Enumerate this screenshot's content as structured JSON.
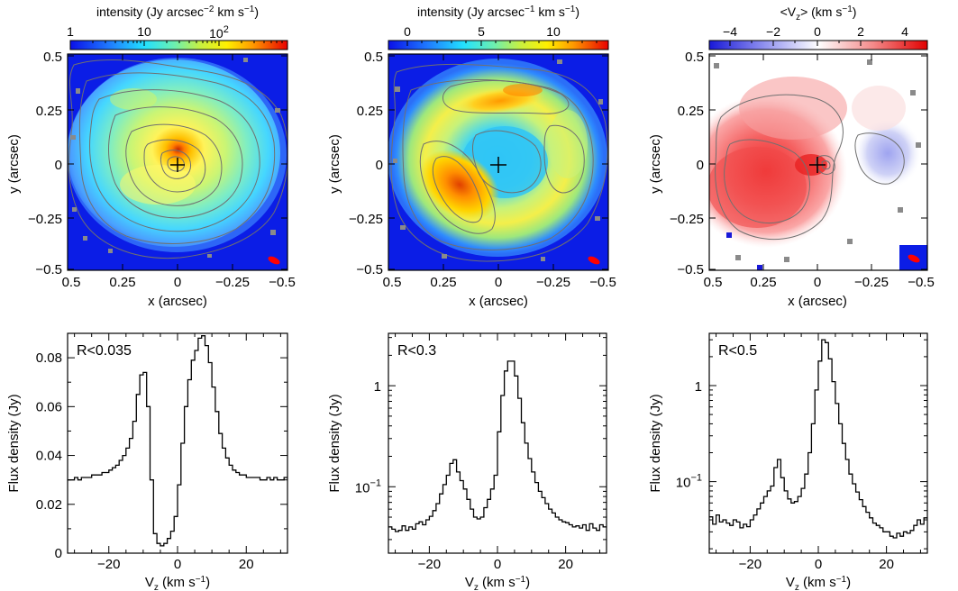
{
  "colors": {
    "map_background": "#0b1de6",
    "cross": "#000000",
    "beam": "#ff0000",
    "contour": "#707070",
    "line": "#000000"
  },
  "chart_data": [
    {
      "type": "heatmap",
      "panel": "top-left",
      "colorbar": {
        "label_pre": "intensity (Jy arcsec",
        "label_sup": "−2",
        "label_post": " km s",
        "label_sup2": "−1",
        "label_end": ")",
        "scale": "log",
        "ticks": [
          "1",
          "10",
          "10"
        ],
        "tick_sup": "2",
        "range": [
          1,
          600
        ]
      },
      "xlabel": "x (arcsec)",
      "ylabel": "y (arcsec)",
      "xlim": [
        0.5,
        -0.5
      ],
      "ylim": [
        -0.5,
        0.5
      ],
      "xticks": [
        "0.5",
        "0.25",
        "0",
        "−0.25",
        "−0.5"
      ],
      "yticks": [
        "0.5",
        "0.25",
        "0",
        "−0.25",
        "−0.5"
      ],
      "peak_position": [
        0.0,
        0.0
      ]
    },
    {
      "type": "heatmap",
      "panel": "top-middle",
      "colorbar": {
        "label_pre": "intensity (Jy arcsec",
        "label_sup": "−1",
        "label_post": " km s",
        "label_sup2": "−1",
        "label_end": ")",
        "scale": "linear",
        "ticks": [
          "0",
          "5",
          "10"
        ],
        "range": [
          -2,
          13
        ]
      },
      "xlabel": "x (arcsec)",
      "ylabel": "y (arcsec)",
      "xlim": [
        0.5,
        -0.5
      ],
      "ylim": [
        -0.5,
        0.5
      ],
      "xticks": [
        "0.5",
        "0.25",
        "0",
        "−0.25",
        "−0.5"
      ],
      "yticks": [
        "0.5",
        "0.25",
        "0",
        "−0.25",
        "−0.5"
      ]
    },
    {
      "type": "heatmap",
      "panel": "top-right",
      "colorbar": {
        "label_pre": "<V",
        "label_sub": "z",
        "label_post": "> (km s",
        "label_sup2": "−1",
        "label_end": ")",
        "scale": "linear",
        "ticks": [
          "−4",
          "−2",
          "0",
          "2",
          "4"
        ],
        "range": [
          -5,
          5
        ]
      },
      "xlabel": "x (arcsec)",
      "ylabel": "y (arcsec)",
      "xlim": [
        0.5,
        -0.5
      ],
      "ylim": [
        -0.5,
        0.5
      ],
      "xticks": [
        "0.5",
        "0.25",
        "0",
        "−0.25",
        "−0.5"
      ],
      "yticks": [
        "0.5",
        "0.25",
        "0",
        "−0.25",
        "−0.5"
      ]
    },
    {
      "type": "line",
      "panel": "bottom-left",
      "label": "R<0.035",
      "xlabel_main": "V",
      "xlabel_sub": "z",
      "xlabel_tail": " (km s",
      "xlabel_sup": "−1",
      "xlabel_end": ")",
      "ylabel": "Flux density (Jy)",
      "xlim": [
        -32,
        32
      ],
      "ylim": [
        0,
        0.09
      ],
      "yscale": "linear",
      "xticks": [
        -20,
        0,
        20
      ],
      "yticks": [
        0,
        0.02,
        0.04,
        0.06,
        0.08
      ],
      "ytick_labels": [
        "0",
        "0.02",
        "0.04",
        "0.06",
        "0.08"
      ],
      "step_width": 1,
      "x": [
        -32,
        -31,
        -30,
        -29,
        -28,
        -27,
        -26,
        -25,
        -24,
        -23,
        -22,
        -21,
        -20,
        -19,
        -18,
        -17,
        -16,
        -15,
        -14,
        -13,
        -12,
        -11,
        -10,
        -9,
        -8,
        -7,
        -6,
        -5,
        -4,
        -3,
        -2,
        -1,
        0,
        1,
        2,
        3,
        4,
        5,
        6,
        7,
        8,
        9,
        10,
        11,
        12,
        13,
        14,
        15,
        16,
        17,
        18,
        19,
        20,
        21,
        22,
        23,
        24,
        25,
        26,
        27,
        28,
        29,
        30,
        31
      ],
      "y": [
        0.03,
        0.03,
        0.031,
        0.03,
        0.031,
        0.031,
        0.031,
        0.032,
        0.032,
        0.032,
        0.033,
        0.033,
        0.034,
        0.035,
        0.036,
        0.038,
        0.04,
        0.043,
        0.047,
        0.054,
        0.065,
        0.073,
        0.074,
        0.06,
        0.03,
        0.008,
        0.004,
        0.003,
        0.004,
        0.006,
        0.009,
        0.015,
        0.028,
        0.045,
        0.06,
        0.071,
        0.079,
        0.083,
        0.088,
        0.089,
        0.085,
        0.078,
        0.068,
        0.058,
        0.049,
        0.043,
        0.039,
        0.036,
        0.034,
        0.033,
        0.032,
        0.032,
        0.031,
        0.031,
        0.031,
        0.031,
        0.03,
        0.03,
        0.031,
        0.03,
        0.031,
        0.03,
        0.03,
        0.031
      ]
    },
    {
      "type": "line",
      "panel": "bottom-middle",
      "label": "R<0.3",
      "xlabel_main": "V",
      "xlabel_sub": "z",
      "xlabel_tail": " (km s",
      "xlabel_sup": "−1",
      "xlabel_end": ")",
      "ylabel": "Flux density (Jy)",
      "xlim": [
        -32,
        32
      ],
      "ylim": [
        0.022,
        3.3
      ],
      "yscale": "log",
      "xticks": [
        -20,
        0,
        20
      ],
      "yticks_labeled": [
        {
          "value": 0.1,
          "base": "10",
          "sup": "−1"
        },
        {
          "value": 1,
          "base": "1",
          "sup": ""
        }
      ],
      "step_width": 1,
      "x": [
        -32,
        -31,
        -30,
        -29,
        -28,
        -27,
        -26,
        -25,
        -24,
        -23,
        -22,
        -21,
        -20,
        -19,
        -18,
        -17,
        -16,
        -15,
        -14,
        -13,
        -12,
        -11,
        -10,
        -9,
        -8,
        -7,
        -6,
        -5,
        -4,
        -3,
        -2,
        -1,
        0,
        1,
        2,
        3,
        4,
        5,
        6,
        7,
        8,
        9,
        10,
        11,
        12,
        13,
        14,
        15,
        16,
        17,
        18,
        19,
        20,
        21,
        22,
        23,
        24,
        25,
        26,
        27,
        28,
        29,
        30,
        31
      ],
      "y": [
        0.04,
        0.038,
        0.036,
        0.037,
        0.041,
        0.037,
        0.04,
        0.038,
        0.043,
        0.045,
        0.042,
        0.047,
        0.051,
        0.058,
        0.068,
        0.085,
        0.105,
        0.13,
        0.17,
        0.185,
        0.14,
        0.115,
        0.095,
        0.075,
        0.06,
        0.05,
        0.048,
        0.05,
        0.062,
        0.075,
        0.095,
        0.13,
        0.35,
        0.8,
        1.4,
        1.75,
        1.75,
        1.25,
        0.75,
        0.43,
        0.27,
        0.19,
        0.14,
        0.11,
        0.09,
        0.078,
        0.068,
        0.06,
        0.055,
        0.05,
        0.047,
        0.045,
        0.044,
        0.042,
        0.04,
        0.041,
        0.039,
        0.042,
        0.037,
        0.043,
        0.039,
        0.037,
        0.042,
        0.04
      ]
    },
    {
      "type": "line",
      "panel": "bottom-right",
      "label": "R<0.5",
      "xlabel_main": "V",
      "xlabel_sub": "z",
      "xlabel_tail": " (km s",
      "xlabel_sup": "−1",
      "xlabel_end": ")",
      "ylabel": "Flux density (Jy)",
      "xlim": [
        -32,
        32
      ],
      "ylim": [
        0.018,
        3.5
      ],
      "yscale": "log",
      "xticks": [
        -20,
        0,
        20
      ],
      "yticks_labeled": [
        {
          "value": 0.1,
          "base": "10",
          "sup": "−1"
        },
        {
          "value": 1,
          "base": "1",
          "sup": ""
        }
      ],
      "step_width": 1,
      "x": [
        -32,
        -31,
        -30,
        -29,
        -28,
        -27,
        -26,
        -25,
        -24,
        -23,
        -22,
        -21,
        -20,
        -19,
        -18,
        -17,
        -16,
        -15,
        -14,
        -13,
        -12,
        -11,
        -10,
        -9,
        -8,
        -7,
        -6,
        -5,
        -4,
        -3,
        -2,
        -1,
        0,
        1,
        2,
        3,
        4,
        5,
        6,
        7,
        8,
        9,
        10,
        11,
        12,
        13,
        14,
        15,
        16,
        17,
        18,
        19,
        20,
        21,
        22,
        23,
        24,
        25,
        26,
        27,
        28,
        29,
        30,
        31
      ],
      "y": [
        0.043,
        0.036,
        0.045,
        0.038,
        0.04,
        0.037,
        0.035,
        0.04,
        0.038,
        0.033,
        0.036,
        0.034,
        0.04,
        0.045,
        0.052,
        0.06,
        0.07,
        0.08,
        0.09,
        0.14,
        0.17,
        0.11,
        0.08,
        0.066,
        0.06,
        0.062,
        0.07,
        0.085,
        0.12,
        0.2,
        0.4,
        0.9,
        1.8,
        3.0,
        2.8,
        1.9,
        1.1,
        0.65,
        0.4,
        0.25,
        0.17,
        0.12,
        0.095,
        0.078,
        0.065,
        0.055,
        0.048,
        0.042,
        0.037,
        0.035,
        0.033,
        0.03,
        0.03,
        0.027,
        0.026,
        0.029,
        0.027,
        0.03,
        0.029,
        0.031,
        0.035,
        0.04,
        0.036,
        0.042
      ]
    }
  ]
}
